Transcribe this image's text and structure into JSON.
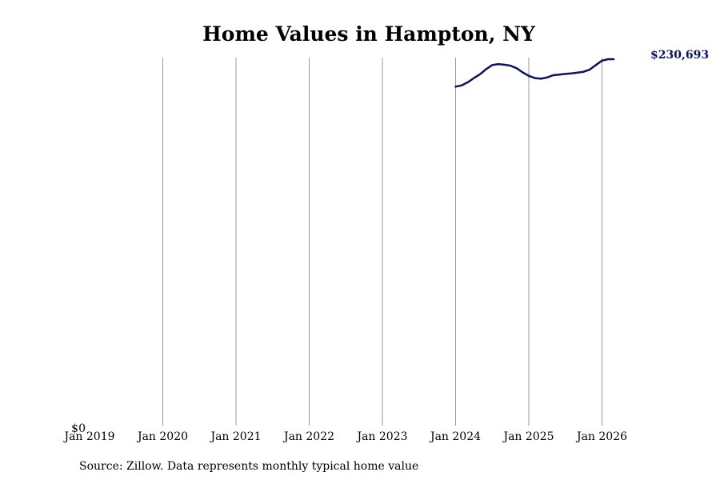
{
  "chart_data": {
    "type": "line",
    "title": "Home Values in Hampton, NY",
    "xlabel": "",
    "ylabel": "",
    "x_ticks": [
      "Jan 2019",
      "Jan 2020",
      "Jan 2021",
      "Jan 2022",
      "Jan 2023",
      "Jan 2024",
      "Jan 2025",
      "Jan 2026"
    ],
    "y_tick_label": "$0",
    "ylim": [
      0,
      230693
    ],
    "grid": "vertical",
    "series": [
      {
        "color": "#0d1260",
        "points": [
          {
            "x": "2024-01",
            "y": 213400
          },
          {
            "x": "2024-02",
            "y": 214200
          },
          {
            "x": "2024-03",
            "y": 216200
          },
          {
            "x": "2024-04",
            "y": 218800
          },
          {
            "x": "2024-05",
            "y": 221200
          },
          {
            "x": "2024-06",
            "y": 224400
          },
          {
            "x": "2024-07",
            "y": 227000
          },
          {
            "x": "2024-08",
            "y": 227600
          },
          {
            "x": "2024-09",
            "y": 227200
          },
          {
            "x": "2024-10",
            "y": 226600
          },
          {
            "x": "2024-11",
            "y": 225000
          },
          {
            "x": "2024-12",
            "y": 222400
          },
          {
            "x": "2025-01",
            "y": 220200
          },
          {
            "x": "2025-02",
            "y": 218800
          },
          {
            "x": "2025-03",
            "y": 218400
          },
          {
            "x": "2025-04",
            "y": 219200
          },
          {
            "x": "2025-05",
            "y": 220600
          },
          {
            "x": "2025-06",
            "y": 221000
          },
          {
            "x": "2025-07",
            "y": 221400
          },
          {
            "x": "2025-08",
            "y": 221800
          },
          {
            "x": "2025-09",
            "y": 222300
          },
          {
            "x": "2025-10",
            "y": 222800
          },
          {
            "x": "2025-11",
            "y": 224200
          },
          {
            "x": "2025-12",
            "y": 227000
          },
          {
            "x": "2026-01",
            "y": 229800
          },
          {
            "x": "2026-02",
            "y": 230693
          }
        ]
      }
    ],
    "last_value_label": "$230,693"
  },
  "source": "Source: Zillow. Data represents monthly typical home value"
}
